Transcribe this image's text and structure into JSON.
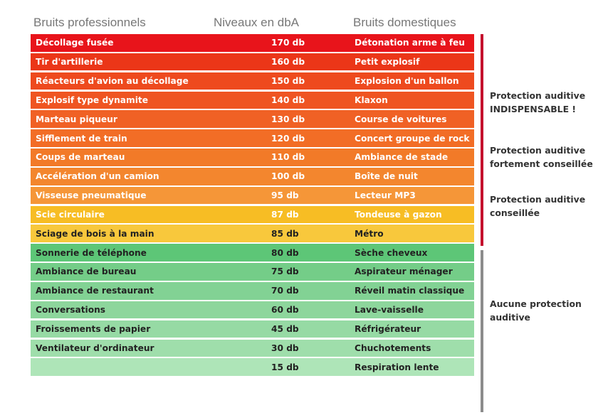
{
  "headers": {
    "professional": "Bruits professionnels",
    "level": "Niveaux en dbA",
    "domestic": "Bruits domestiques"
  },
  "rows": [
    {
      "professional": "Décollage fusée",
      "level": "170 db",
      "domestic": "Détonation arme à feu",
      "color": "#e8141b",
      "text_color": "#ffffff"
    },
    {
      "professional": "Tir d'artillerie",
      "level": "160 db",
      "domestic": "Petit explosif",
      "color": "#eb3618",
      "text_color": "#ffffff"
    },
    {
      "professional": "Réacteurs d'avion au décollage",
      "level": "150 db",
      "domestic": "Explosion d'un ballon",
      "color": "#ee4a1e",
      "text_color": "#ffffff"
    },
    {
      "professional": "Explosif type dynamite",
      "level": "140 db",
      "domestic": "Klaxon",
      "color": "#ef5522",
      "text_color": "#ffffff"
    },
    {
      "professional": "Marteau piqueur",
      "level": "130 db",
      "domestic": "Course de voitures",
      "color": "#f06125",
      "text_color": "#ffffff"
    },
    {
      "professional": "Sifflement de train",
      "level": "120 db",
      "domestic": "Concert groupe de rock",
      "color": "#f26d26",
      "text_color": "#ffffff"
    },
    {
      "professional": "Coups de marteau",
      "level": "110 db",
      "domestic": "Ambiance de stade",
      "color": "#f27a28",
      "text_color": "#ffffff"
    },
    {
      "professional": "Accélération d'un camion",
      "level": "100 db",
      "domestic": "Boîte de nuit",
      "color": "#f3862e",
      "text_color": "#ffffff"
    },
    {
      "professional": "Visseuse pneumatique",
      "level": "95 db",
      "domestic": "Lecteur MP3",
      "color": "#f59638",
      "text_color": "#ffffff"
    },
    {
      "professional": "Scie circulaire",
      "level": "87 db",
      "domestic": "Tondeuse à gazon",
      "color": "#f7bd24",
      "text_color": "#ffffff"
    },
    {
      "professional": "Sciage de bois à la main",
      "level": "85 db",
      "domestic": "Métro",
      "color": "#f8c83c",
      "text_color": "#222222"
    },
    {
      "professional": "Sonnerie de téléphone",
      "level": "80 db",
      "domestic": "Sèche cheveux",
      "color": "#5dc677",
      "text_color": "#222222"
    },
    {
      "professional": "Ambiance de bureau",
      "level": "75 db",
      "domestic": "Aspirateur ménager",
      "color": "#74cd88",
      "text_color": "#222222"
    },
    {
      "professional": "Ambiance de restaurant",
      "level": "70 db",
      "domestic": "Réveil matin classique",
      "color": "#82d294",
      "text_color": "#222222"
    },
    {
      "professional": "Conversations",
      "level": "60 db",
      "domestic": "Lave-vaisselle",
      "color": "#8dd69c",
      "text_color": "#222222"
    },
    {
      "professional": "Froissements de papier",
      "level": "45 db",
      "domestic": "Réfrigérateur",
      "color": "#96daa4",
      "text_color": "#222222"
    },
    {
      "professional": "Ventilateur d'ordinateur",
      "level": "30 db",
      "domestic": "Chuchotements",
      "color": "#9fdeab",
      "text_color": "#222222"
    },
    {
      "professional": "",
      "level": "15 db",
      "domestic": "Respiration lente",
      "color": "#aee5b8",
      "text_color": "#222222"
    }
  ],
  "notes": {
    "indispensable": "Protection auditive INDISPENSABLE !",
    "strongly_advised": "Protection auditive fortement conseillée",
    "advised": "Protection auditive conseillée",
    "none": "Aucune protection auditive"
  },
  "colors": {
    "danger_bar": "#c40e2d",
    "safe_bar": "#8c8c8c",
    "header_text": "#777777"
  }
}
